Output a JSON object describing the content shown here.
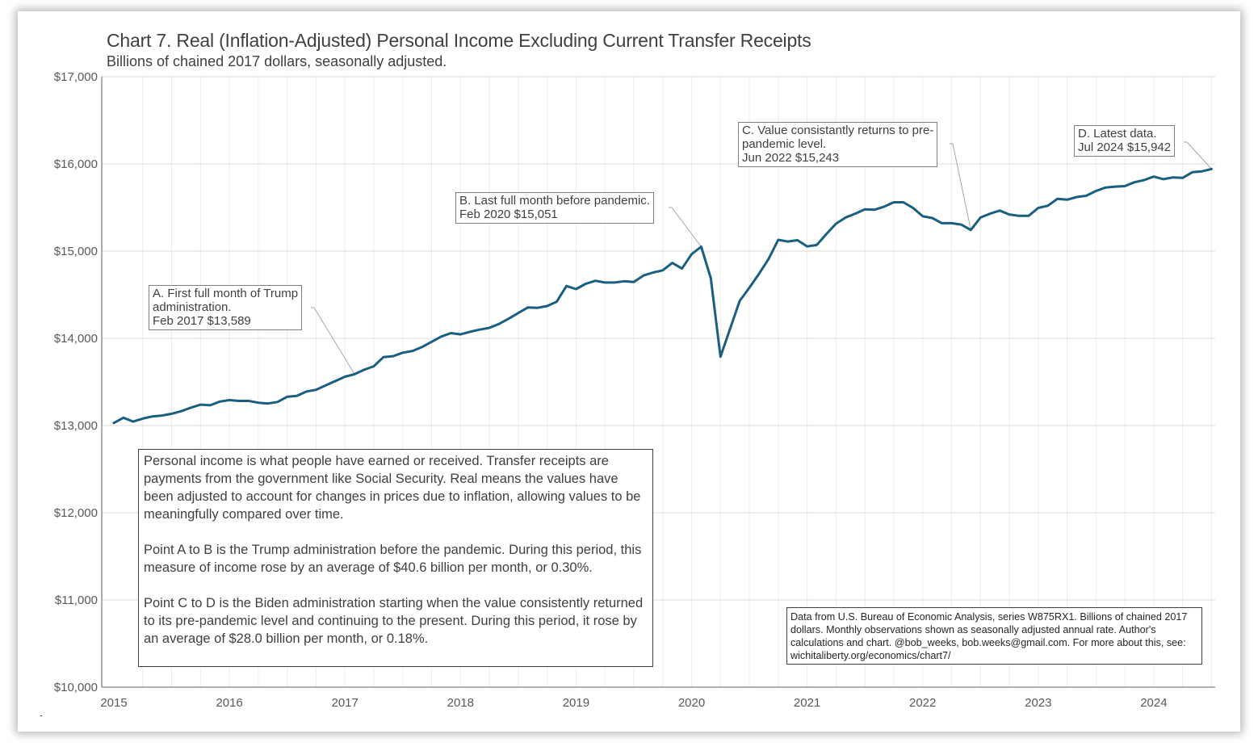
{
  "chart_data": {
    "type": "line",
    "title": "Chart 7. Real (Inflation-Adjusted) Personal Income Excluding Current Transfer Receipts",
    "subtitle": "Billions of chained 2017 dollars, seasonally adjusted.",
    "xlabel": "",
    "ylabel": "",
    "ylim": [
      10000,
      17000
    ],
    "xlim": [
      "2015-01",
      "2024-07"
    ],
    "grid": true,
    "legend": "none",
    "line_color": "#1a5f80",
    "y_ticks": [
      "$10,000",
      "$11,000",
      "$12,000",
      "$13,000",
      "$14,000",
      "$15,000",
      "$16,000",
      "$17,000"
    ],
    "y_tick_values": [
      10000,
      11000,
      12000,
      13000,
      14000,
      15000,
      16000,
      17000
    ],
    "x_ticks": [
      "2015",
      "2016",
      "2017",
      "2018",
      "2019",
      "2020",
      "2021",
      "2022",
      "2023",
      "2024"
    ],
    "start": "2015-01",
    "frequency": "monthly",
    "series": [
      {
        "name": "Real personal income excluding current transfer receipts",
        "values": [
          13030,
          13090,
          13045,
          13080,
          13105,
          13115,
          13135,
          13165,
          13205,
          13240,
          13232,
          13275,
          13292,
          13282,
          13282,
          13262,
          13253,
          13270,
          13330,
          13340,
          13390,
          13410,
          13460,
          13510,
          13560,
          13589,
          13640,
          13680,
          13785,
          13795,
          13835,
          13855,
          13900,
          13960,
          14020,
          14060,
          14045,
          14075,
          14100,
          14120,
          14165,
          14225,
          14290,
          14355,
          14350,
          14370,
          14420,
          14600,
          14565,
          14625,
          14660,
          14640,
          14640,
          14655,
          14645,
          14720,
          14755,
          14780,
          14865,
          14800,
          14965,
          15051,
          14690,
          13790,
          14110,
          14430,
          14580,
          14740,
          14910,
          15130,
          15110,
          15125,
          15055,
          15070,
          15195,
          15315,
          15385,
          15430,
          15480,
          15475,
          15510,
          15560,
          15560,
          15495,
          15400,
          15380,
          15320,
          15320,
          15305,
          15243,
          15385,
          15430,
          15465,
          15420,
          15405,
          15405,
          15495,
          15520,
          15600,
          15590,
          15620,
          15635,
          15690,
          15730,
          15740,
          15745,
          15790,
          15815,
          15855,
          15825,
          15845,
          15840,
          15905,
          15915,
          15942
        ]
      }
    ],
    "annotations": [
      {
        "id": "A",
        "lines": [
          "A. First full  month  of Trump",
          "administration.",
          "Feb 2017  $13,589"
        ],
        "date": "2017-02",
        "value": 13589
      },
      {
        "id": "B",
        "lines": [
          "B. Last full  month  before pandemic.",
          "Feb 2020  $15,051"
        ],
        "date": "2020-02",
        "value": 15051
      },
      {
        "id": "C",
        "lines": [
          "C. Value  consistantly  returns to pre-",
          "pandemic level.",
          "Jun 2022  $15,243"
        ],
        "date": "2022-06",
        "value": 15243
      },
      {
        "id": "D",
        "lines": [
          "D. Latest data.",
          "Jul 2024  $15,942"
        ],
        "date": "2024-07",
        "value": 15942
      }
    ]
  },
  "notes": {
    "paragraphs": [
      "Personal income is what people have earned or received. Transfer receipts are payments from the government like Social Security. Real means the values have been adjusted to account for changes in prices due to inflation, allowing values to be meaningfully compared over time.",
      "Point A to B is the Trump administration before the pandemic. During this period, this measure of income rose by an average of $40.6 billion per month, or 0.30%.",
      "Point C to D is the Biden administration starting when the value consistently returned to its pre-pandemic level and continuing to the present. During this period, it rose by an average of $28.0 billion per month, or 0.18%."
    ]
  },
  "source": {
    "text": "Data from U.S. Bureau of Economic Analysis, series W875RX1. Billions of chained 2017 dollars. Monthly observations shown as seasonally adjusted annual rate. Author's calculations and chart. @bob_weeks, bob.weeks@gmail.com. For more about this, see: wichitaliberty.org/economics/chart7/"
  }
}
